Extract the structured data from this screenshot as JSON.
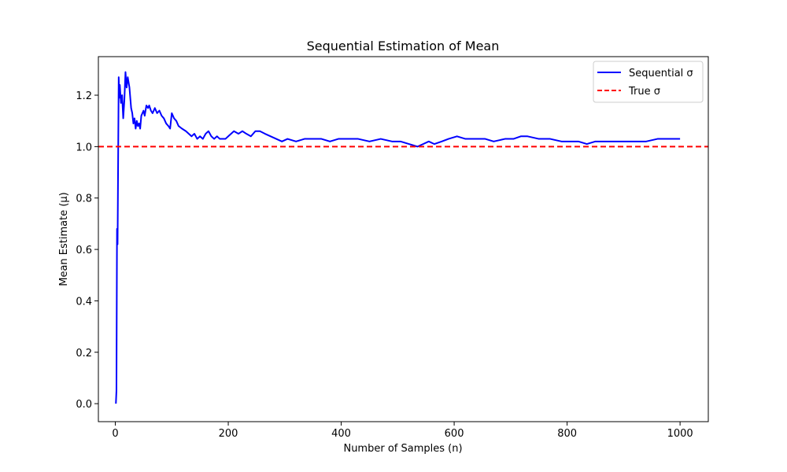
{
  "chart_data": {
    "type": "line",
    "title": "Sequential Estimation of Mean",
    "xlabel": "Number of Samples (n)",
    "ylabel": "Mean Estimate (μ)",
    "xlim": [
      -30,
      1050
    ],
    "ylim": [
      -0.07,
      1.35
    ],
    "x_ticks": [
      0,
      200,
      400,
      600,
      800,
      1000
    ],
    "x_tick_labels": [
      "0",
      "200",
      "400",
      "600",
      "800",
      "1000"
    ],
    "y_ticks": [
      0.0,
      0.2,
      0.4,
      0.6,
      0.8,
      1.0,
      1.2
    ],
    "y_tick_labels": [
      "0.0",
      "0.2",
      "0.4",
      "0.6",
      "0.8",
      "1.0",
      "1.2"
    ],
    "grid": false,
    "legend_position": "top-right",
    "series": [
      {
        "name": "Sequential σ",
        "color": "#0000ff",
        "style": "solid",
        "points": [
          [
            1,
            0.0
          ],
          [
            2,
            0.05
          ],
          [
            3,
            0.68
          ],
          [
            4,
            0.62
          ],
          [
            5,
            0.95
          ],
          [
            6,
            1.27
          ],
          [
            7,
            1.19
          ],
          [
            8,
            1.24
          ],
          [
            10,
            1.17
          ],
          [
            12,
            1.2
          ],
          [
            14,
            1.11
          ],
          [
            16,
            1.18
          ],
          [
            18,
            1.29
          ],
          [
            20,
            1.23
          ],
          [
            22,
            1.27
          ],
          [
            25,
            1.23
          ],
          [
            28,
            1.15
          ],
          [
            30,
            1.13
          ],
          [
            32,
            1.09
          ],
          [
            34,
            1.11
          ],
          [
            36,
            1.07
          ],
          [
            38,
            1.1
          ],
          [
            40,
            1.08
          ],
          [
            42,
            1.09
          ],
          [
            44,
            1.07
          ],
          [
            46,
            1.12
          ],
          [
            48,
            1.13
          ],
          [
            50,
            1.14
          ],
          [
            52,
            1.12
          ],
          [
            55,
            1.16
          ],
          [
            58,
            1.15
          ],
          [
            60,
            1.16
          ],
          [
            63,
            1.14
          ],
          [
            66,
            1.13
          ],
          [
            70,
            1.15
          ],
          [
            74,
            1.13
          ],
          [
            78,
            1.14
          ],
          [
            82,
            1.12
          ],
          [
            86,
            1.11
          ],
          [
            90,
            1.09
          ],
          [
            94,
            1.08
          ],
          [
            97,
            1.07
          ],
          [
            100,
            1.13
          ],
          [
            104,
            1.11
          ],
          [
            108,
            1.1
          ],
          [
            112,
            1.08
          ],
          [
            118,
            1.07
          ],
          [
            125,
            1.06
          ],
          [
            130,
            1.05
          ],
          [
            135,
            1.04
          ],
          [
            140,
            1.05
          ],
          [
            145,
            1.03
          ],
          [
            150,
            1.04
          ],
          [
            155,
            1.03
          ],
          [
            160,
            1.05
          ],
          [
            165,
            1.06
          ],
          [
            170,
            1.04
          ],
          [
            175,
            1.03
          ],
          [
            180,
            1.04
          ],
          [
            185,
            1.03
          ],
          [
            190,
            1.03
          ],
          [
            195,
            1.03
          ],
          [
            200,
            1.04
          ],
          [
            205,
            1.05
          ],
          [
            210,
            1.06
          ],
          [
            218,
            1.05
          ],
          [
            225,
            1.06
          ],
          [
            232,
            1.05
          ],
          [
            240,
            1.04
          ],
          [
            248,
            1.06
          ],
          [
            256,
            1.06
          ],
          [
            265,
            1.05
          ],
          [
            275,
            1.04
          ],
          [
            285,
            1.03
          ],
          [
            295,
            1.02
          ],
          [
            305,
            1.03
          ],
          [
            320,
            1.02
          ],
          [
            335,
            1.03
          ],
          [
            350,
            1.03
          ],
          [
            365,
            1.03
          ],
          [
            380,
            1.02
          ],
          [
            395,
            1.03
          ],
          [
            410,
            1.03
          ],
          [
            430,
            1.03
          ],
          [
            450,
            1.02
          ],
          [
            470,
            1.03
          ],
          [
            490,
            1.02
          ],
          [
            505,
            1.02
          ],
          [
            520,
            1.01
          ],
          [
            535,
            1.0
          ],
          [
            545,
            1.01
          ],
          [
            555,
            1.02
          ],
          [
            565,
            1.01
          ],
          [
            578,
            1.02
          ],
          [
            590,
            1.03
          ],
          [
            605,
            1.04
          ],
          [
            620,
            1.03
          ],
          [
            640,
            1.03
          ],
          [
            655,
            1.03
          ],
          [
            670,
            1.02
          ],
          [
            690,
            1.03
          ],
          [
            705,
            1.03
          ],
          [
            718,
            1.04
          ],
          [
            730,
            1.04
          ],
          [
            750,
            1.03
          ],
          [
            770,
            1.03
          ],
          [
            790,
            1.02
          ],
          [
            805,
            1.02
          ],
          [
            820,
            1.02
          ],
          [
            835,
            1.01
          ],
          [
            850,
            1.02
          ],
          [
            865,
            1.02
          ],
          [
            880,
            1.02
          ],
          [
            900,
            1.02
          ],
          [
            920,
            1.02
          ],
          [
            940,
            1.02
          ],
          [
            960,
            1.03
          ],
          [
            980,
            1.03
          ],
          [
            1000,
            1.03
          ]
        ]
      },
      {
        "name": "True σ",
        "color": "#ff0000",
        "style": "dashed",
        "y": 1.0
      }
    ]
  }
}
